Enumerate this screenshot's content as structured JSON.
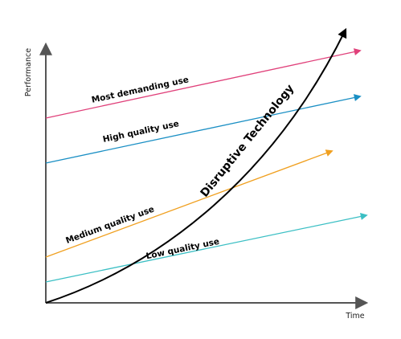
{
  "axes": {
    "y_label": "Performance",
    "x_label": "Time"
  },
  "lines": [
    {
      "label": "Most demanding use"
    },
    {
      "label": "High quality use"
    },
    {
      "label": "Medium quality use"
    },
    {
      "label": "Low quality use"
    }
  ],
  "curve": {
    "label": "Disruptive Technology"
  }
}
